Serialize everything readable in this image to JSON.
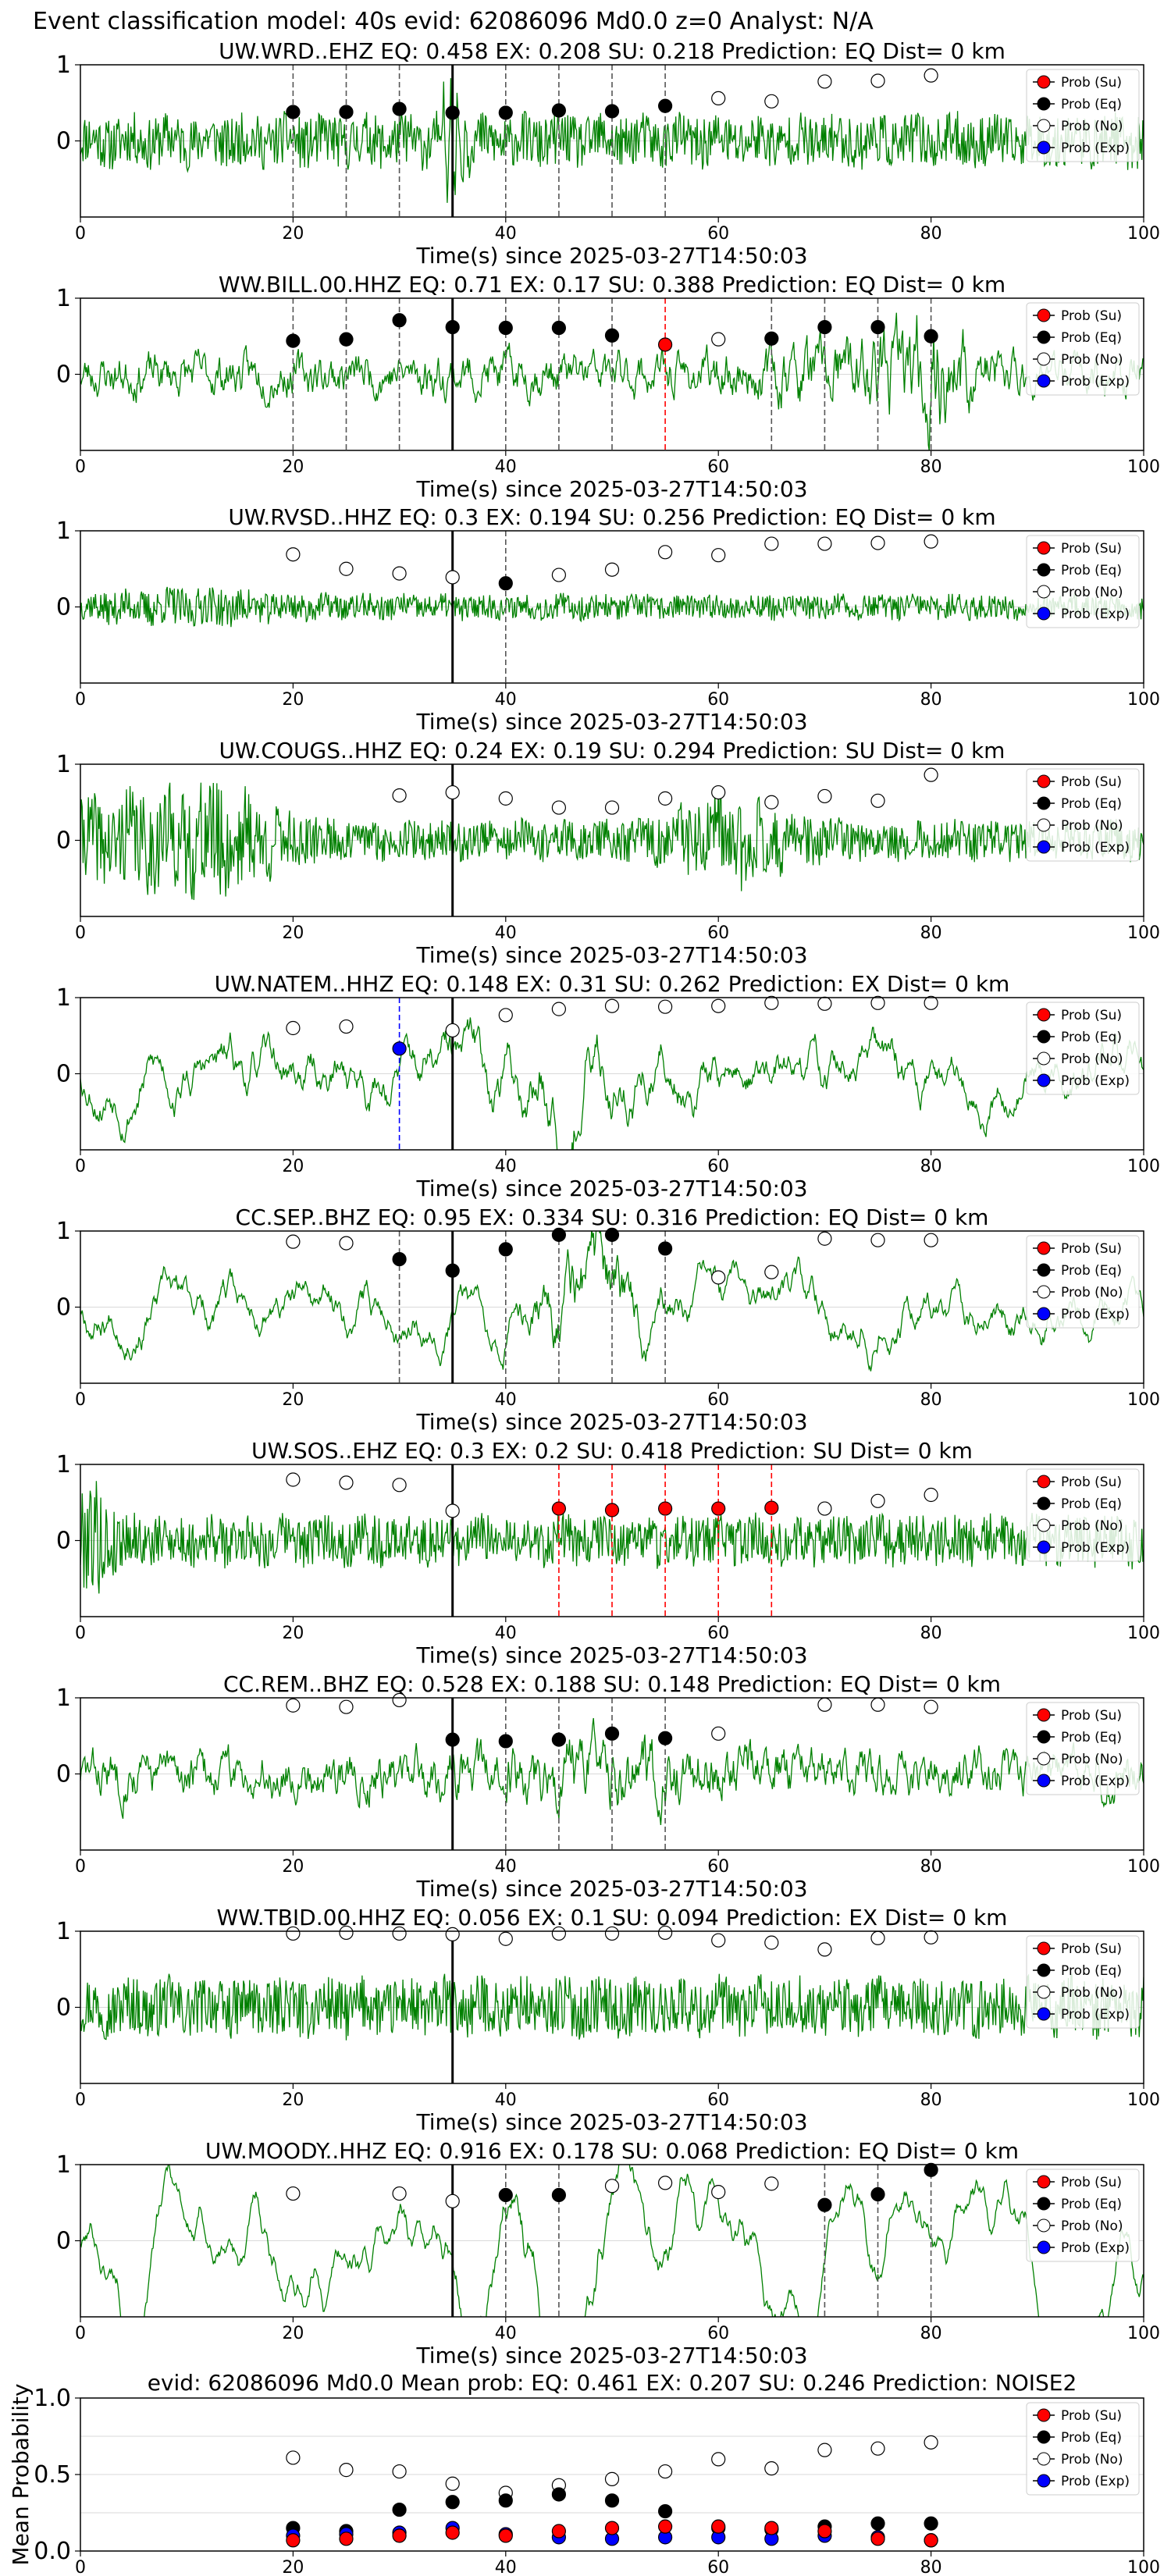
{
  "figure": {
    "title": "Event classification model: 40s evid: 62086096 Md0.0 z=0 Analyst: N/A"
  },
  "legend_labels": [
    "Prob (Su)",
    "Prob (Eq)",
    "Prob (No)",
    "Prob (Exp)"
  ],
  "colors": {
    "trace": "#008000",
    "su": "#ff0000",
    "eq": "#000000",
    "no": "#ffffff",
    "exp": "#0000ff",
    "grid": "#d9d9d9"
  },
  "chart_data": [
    {
      "type": "line",
      "title": "UW.WRD..EHZ   EQ: 0.458  EX: 0.208  SU: 0.218   Prediction: EQ    Dist= 0 km",
      "xlabel": "Time(s) since 2025-03-27T14:50:03",
      "xlim": [
        0,
        100
      ],
      "ylim": [
        -1,
        1
      ],
      "xticks": [
        0,
        20,
        40,
        60,
        80,
        100
      ],
      "yticks": [
        0,
        1
      ],
      "legend": "top-right",
      "trace": {
        "seed": 11,
        "amp": 0.38,
        "style": "noisy",
        "spikes": [
          [
            35,
            2.1,
            -0.7
          ]
        ]
      },
      "event_line": 35,
      "markers": [
        {
          "x": 20,
          "y": 0.38,
          "cls": "eq"
        },
        {
          "x": 25,
          "y": 0.38,
          "cls": "eq"
        },
        {
          "x": 30,
          "y": 0.42,
          "cls": "eq"
        },
        {
          "x": 35,
          "y": 0.37,
          "cls": "eq"
        },
        {
          "x": 40,
          "y": 0.37,
          "cls": "eq"
        },
        {
          "x": 45,
          "y": 0.4,
          "cls": "eq"
        },
        {
          "x": 50,
          "y": 0.39,
          "cls": "eq"
        },
        {
          "x": 55,
          "y": 0.46,
          "cls": "eq"
        },
        {
          "x": 60,
          "y": 0.56,
          "cls": "no"
        },
        {
          "x": 65,
          "y": 0.52,
          "cls": "no"
        },
        {
          "x": 70,
          "y": 0.78,
          "cls": "no"
        },
        {
          "x": 75,
          "y": 0.79,
          "cls": "no"
        },
        {
          "x": 80,
          "y": 0.86,
          "cls": "no"
        }
      ]
    },
    {
      "type": "line",
      "title": "WW.BILL.00.HHZ   EQ: 0.71  EX: 0.17  SU: 0.388   Prediction: EQ    Dist= 0 km",
      "xlabel": "Time(s) since 2025-03-27T14:50:03",
      "xlim": [
        0,
        100
      ],
      "ylim": [
        -1,
        1
      ],
      "xticks": [
        0,
        20,
        40,
        60,
        80,
        100
      ],
      "yticks": [
        0,
        1
      ],
      "legend": "top-right",
      "trace": {
        "seed": 23,
        "amp": 0.3,
        "style": "smooth",
        "bursts": [
          [
            80,
            3,
            2.6
          ],
          [
            70,
            4,
            1.6
          ]
        ]
      },
      "event_line": 35,
      "markers": [
        {
          "x": 20,
          "y": 0.44,
          "cls": "eq"
        },
        {
          "x": 25,
          "y": 0.46,
          "cls": "eq"
        },
        {
          "x": 30,
          "y": 0.71,
          "cls": "eq"
        },
        {
          "x": 35,
          "y": 0.62,
          "cls": "eq"
        },
        {
          "x": 40,
          "y": 0.61,
          "cls": "eq"
        },
        {
          "x": 45,
          "y": 0.61,
          "cls": "eq"
        },
        {
          "x": 50,
          "y": 0.51,
          "cls": "eq"
        },
        {
          "x": 55,
          "y": 0.39,
          "cls": "su"
        },
        {
          "x": 60,
          "y": 0.46,
          "cls": "no"
        },
        {
          "x": 65,
          "y": 0.47,
          "cls": "eq"
        },
        {
          "x": 70,
          "y": 0.62,
          "cls": "eq"
        },
        {
          "x": 75,
          "y": 0.62,
          "cls": "eq"
        },
        {
          "x": 80,
          "y": 0.5,
          "cls": "eq"
        }
      ]
    },
    {
      "type": "line",
      "title": "UW.RVSD..HHZ   EQ: 0.3  EX: 0.194  SU: 0.256   Prediction: EQ    Dist= 0 km",
      "xlabel": "Time(s) since 2025-03-27T14:50:03",
      "xlim": [
        0,
        100
      ],
      "ylim": [
        -1,
        1
      ],
      "xticks": [
        0,
        20,
        40,
        60,
        80,
        100
      ],
      "yticks": [
        0,
        1
      ],
      "legend": "top-right",
      "trace": {
        "seed": 37,
        "amp": 0.18,
        "style": "noisy",
        "bursts": [
          [
            10,
            6,
            1.6
          ]
        ]
      },
      "event_line": 35,
      "markers": [
        {
          "x": 20,
          "y": 0.69,
          "cls": "no"
        },
        {
          "x": 25,
          "y": 0.5,
          "cls": "no"
        },
        {
          "x": 30,
          "y": 0.44,
          "cls": "no"
        },
        {
          "x": 35,
          "y": 0.39,
          "cls": "no"
        },
        {
          "x": 40,
          "y": 0.31,
          "cls": "eq"
        },
        {
          "x": 45,
          "y": 0.42,
          "cls": "no"
        },
        {
          "x": 50,
          "y": 0.49,
          "cls": "no"
        },
        {
          "x": 55,
          "y": 0.72,
          "cls": "no"
        },
        {
          "x": 60,
          "y": 0.68,
          "cls": "no"
        },
        {
          "x": 65,
          "y": 0.83,
          "cls": "no"
        },
        {
          "x": 70,
          "y": 0.83,
          "cls": "no"
        },
        {
          "x": 75,
          "y": 0.84,
          "cls": "no"
        },
        {
          "x": 80,
          "y": 0.86,
          "cls": "no"
        }
      ]
    },
    {
      "type": "line",
      "title": "UW.COUGS..HHZ   EQ: 0.24  EX: 0.19  SU: 0.294   Prediction: SU    Dist= 0 km",
      "xlabel": "Time(s) since 2025-03-27T14:50:03",
      "xlim": [
        0,
        100
      ],
      "ylim": [
        -1,
        1
      ],
      "xticks": [
        0,
        20,
        40,
        60,
        80,
        100
      ],
      "yticks": [
        0,
        1
      ],
      "legend": "top-right",
      "trace": {
        "seed": 41,
        "amp": 0.28,
        "style": "noisy",
        "bursts": [
          [
            5,
            7,
            2.4
          ],
          [
            15,
            4,
            1.8
          ],
          [
            61,
            4,
            2.4
          ]
        ]
      },
      "event_line": 35,
      "markers": [
        {
          "x": 30,
          "y": 0.59,
          "cls": "no"
        },
        {
          "x": 35,
          "y": 0.63,
          "cls": "no"
        },
        {
          "x": 40,
          "y": 0.55,
          "cls": "no"
        },
        {
          "x": 45,
          "y": 0.43,
          "cls": "no"
        },
        {
          "x": 50,
          "y": 0.43,
          "cls": "no"
        },
        {
          "x": 55,
          "y": 0.55,
          "cls": "no"
        },
        {
          "x": 60,
          "y": 0.63,
          "cls": "no"
        },
        {
          "x": 65,
          "y": 0.5,
          "cls": "no"
        },
        {
          "x": 70,
          "y": 0.58,
          "cls": "no"
        },
        {
          "x": 75,
          "y": 0.52,
          "cls": "no"
        },
        {
          "x": 80,
          "y": 0.86,
          "cls": "no"
        }
      ]
    },
    {
      "type": "line",
      "title": "UW.NATEM..HHZ   EQ: 0.148  EX: 0.31  SU: 0.262   Prediction: EX    Dist= 0 km",
      "xlabel": "Time(s) since 2025-03-27T14:50:03",
      "xlim": [
        0,
        100
      ],
      "ylim": [
        -1,
        1
      ],
      "xticks": [
        0,
        20,
        40,
        60,
        80,
        100
      ],
      "yticks": [
        0,
        1
      ],
      "legend": "top-right",
      "trace": {
        "seed": 53,
        "amp": 0.32,
        "style": "wavy",
        "bursts": [
          [
            45,
            6,
            1.6
          ]
        ]
      },
      "event_line": 35,
      "markers": [
        {
          "x": 20,
          "y": 0.6,
          "cls": "no"
        },
        {
          "x": 25,
          "y": 0.62,
          "cls": "no"
        },
        {
          "x": 30,
          "y": 0.33,
          "cls": "exp"
        },
        {
          "x": 35,
          "y": 0.57,
          "cls": "no"
        },
        {
          "x": 40,
          "y": 0.77,
          "cls": "no"
        },
        {
          "x": 45,
          "y": 0.85,
          "cls": "no"
        },
        {
          "x": 50,
          "y": 0.89,
          "cls": "no"
        },
        {
          "x": 55,
          "y": 0.88,
          "cls": "no"
        },
        {
          "x": 60,
          "y": 0.89,
          "cls": "no"
        },
        {
          "x": 65,
          "y": 0.93,
          "cls": "no"
        },
        {
          "x": 70,
          "y": 0.92,
          "cls": "no"
        },
        {
          "x": 75,
          "y": 0.93,
          "cls": "no"
        },
        {
          "x": 80,
          "y": 0.93,
          "cls": "no"
        }
      ]
    },
    {
      "type": "line",
      "title": "CC.SEP..BHZ   EQ: 0.95  EX: 0.334  SU: 0.316   Prediction: EQ    Dist= 0 km",
      "xlabel": "Time(s) since 2025-03-27T14:50:03",
      "xlim": [
        0,
        100
      ],
      "ylim": [
        -1,
        1
      ],
      "xticks": [
        0,
        20,
        40,
        60,
        80,
        100
      ],
      "yticks": [
        0,
        1
      ],
      "legend": "top-right",
      "trace": {
        "seed": 67,
        "amp": 0.26,
        "style": "wavy",
        "bursts": [
          [
            48,
            3,
            2.8
          ]
        ]
      },
      "event_line": 35,
      "markers": [
        {
          "x": 20,
          "y": 0.86,
          "cls": "no"
        },
        {
          "x": 25,
          "y": 0.84,
          "cls": "no"
        },
        {
          "x": 30,
          "y": 0.63,
          "cls": "eq"
        },
        {
          "x": 35,
          "y": 0.48,
          "cls": "eq"
        },
        {
          "x": 40,
          "y": 0.76,
          "cls": "eq"
        },
        {
          "x": 45,
          "y": 0.95,
          "cls": "eq"
        },
        {
          "x": 50,
          "y": 0.95,
          "cls": "eq"
        },
        {
          "x": 55,
          "y": 0.77,
          "cls": "eq"
        },
        {
          "x": 60,
          "y": 0.39,
          "cls": "no"
        },
        {
          "x": 65,
          "y": 0.46,
          "cls": "no"
        },
        {
          "x": 70,
          "y": 0.9,
          "cls": "no"
        },
        {
          "x": 75,
          "y": 0.88,
          "cls": "no"
        },
        {
          "x": 80,
          "y": 0.88,
          "cls": "no"
        }
      ]
    },
    {
      "type": "line",
      "title": "UW.SOS..EHZ   EQ: 0.3  EX: 0.2  SU: 0.418   Prediction: SU    Dist= 0 km",
      "xlabel": "Time(s) since 2025-03-27T14:50:03",
      "xlim": [
        0,
        100
      ],
      "ylim": [
        -1,
        1
      ],
      "xticks": [
        0,
        20,
        40,
        60,
        80,
        100
      ],
      "yticks": [
        0,
        1
      ],
      "legend": "top-right",
      "trace": {
        "seed": 79,
        "amp": 0.36,
        "style": "noisy",
        "bursts": [
          [
            1,
            1.5,
            2.4
          ]
        ]
      },
      "event_line": 35,
      "markers": [
        {
          "x": 20,
          "y": 0.8,
          "cls": "no"
        },
        {
          "x": 25,
          "y": 0.76,
          "cls": "no"
        },
        {
          "x": 30,
          "y": 0.73,
          "cls": "no"
        },
        {
          "x": 35,
          "y": 0.39,
          "cls": "no"
        },
        {
          "x": 45,
          "y": 0.42,
          "cls": "su"
        },
        {
          "x": 50,
          "y": 0.4,
          "cls": "su"
        },
        {
          "x": 55,
          "y": 0.42,
          "cls": "su"
        },
        {
          "x": 60,
          "y": 0.42,
          "cls": "su"
        },
        {
          "x": 65,
          "y": 0.43,
          "cls": "su"
        },
        {
          "x": 70,
          "y": 0.42,
          "cls": "no"
        },
        {
          "x": 75,
          "y": 0.52,
          "cls": "no"
        },
        {
          "x": 80,
          "y": 0.6,
          "cls": "no"
        }
      ]
    },
    {
      "type": "line",
      "title": "CC.REM..BHZ   EQ: 0.528  EX: 0.188  SU: 0.148   Prediction: EQ    Dist= 0 km",
      "xlabel": "Time(s) since 2025-03-27T14:50:03",
      "xlim": [
        0,
        100
      ],
      "ylim": [
        -1,
        1
      ],
      "xticks": [
        0,
        20,
        40,
        60,
        80,
        100
      ],
      "yticks": [
        0,
        1
      ],
      "legend": "top-right",
      "trace": {
        "seed": 83,
        "amp": 0.32,
        "style": "smooth",
        "bursts": [
          [
            50,
            8,
            1.5
          ]
        ]
      },
      "event_line": 35,
      "markers": [
        {
          "x": 20,
          "y": 0.9,
          "cls": "no"
        },
        {
          "x": 25,
          "y": 0.88,
          "cls": "no"
        },
        {
          "x": 30,
          "y": 0.97,
          "cls": "no"
        },
        {
          "x": 35,
          "y": 0.45,
          "cls": "eq"
        },
        {
          "x": 40,
          "y": 0.43,
          "cls": "eq"
        },
        {
          "x": 45,
          "y": 0.45,
          "cls": "eq"
        },
        {
          "x": 50,
          "y": 0.53,
          "cls": "eq"
        },
        {
          "x": 55,
          "y": 0.47,
          "cls": "eq"
        },
        {
          "x": 60,
          "y": 0.53,
          "cls": "no"
        },
        {
          "x": 70,
          "y": 0.91,
          "cls": "no"
        },
        {
          "x": 75,
          "y": 0.91,
          "cls": "no"
        },
        {
          "x": 80,
          "y": 0.88,
          "cls": "no"
        }
      ]
    },
    {
      "type": "line",
      "title": "WW.TBID.00.HHZ   EQ: 0.056  EX: 0.1  SU: 0.094   Prediction: EX    Dist= 0 km",
      "xlabel": "Time(s) since 2025-03-27T14:50:03",
      "xlim": [
        0,
        100
      ],
      "ylim": [
        -1,
        1
      ],
      "xticks": [
        0,
        20,
        40,
        60,
        80,
        100
      ],
      "yticks": [
        0,
        1
      ],
      "legend": "top-right",
      "trace": {
        "seed": 97,
        "amp": 0.42,
        "style": "noisy",
        "bursts": []
      },
      "event_line": 35,
      "markers": [
        {
          "x": 20,
          "y": 0.97,
          "cls": "no"
        },
        {
          "x": 25,
          "y": 0.98,
          "cls": "no"
        },
        {
          "x": 30,
          "y": 0.97,
          "cls": "no"
        },
        {
          "x": 35,
          "y": 0.96,
          "cls": "no"
        },
        {
          "x": 40,
          "y": 0.9,
          "cls": "no"
        },
        {
          "x": 45,
          "y": 0.97,
          "cls": "no"
        },
        {
          "x": 50,
          "y": 0.97,
          "cls": "no"
        },
        {
          "x": 55,
          "y": 0.98,
          "cls": "no"
        },
        {
          "x": 60,
          "y": 0.88,
          "cls": "no"
        },
        {
          "x": 65,
          "y": 0.85,
          "cls": "no"
        },
        {
          "x": 70,
          "y": 0.76,
          "cls": "no"
        },
        {
          "x": 75,
          "y": 0.91,
          "cls": "no"
        },
        {
          "x": 80,
          "y": 0.92,
          "cls": "no"
        }
      ]
    },
    {
      "type": "line",
      "title": "UW.MOODY..HHZ   EQ: 0.916  EX: 0.178  SU: 0.068   Prediction: EQ    Dist= 0 km",
      "xlabel": "Time(s) since 2025-03-27T14:50:03",
      "xlim": [
        0,
        100
      ],
      "ylim": [
        -1,
        1
      ],
      "xticks": [
        0,
        20,
        40,
        60,
        80,
        100
      ],
      "yticks": [
        0,
        1
      ],
      "legend": "top-right",
      "trace": {
        "seed": 101,
        "amp": 0.5,
        "style": "verywavy",
        "bursts": [
          [
            45,
            6,
            1.4
          ]
        ]
      },
      "event_line": 35,
      "markers": [
        {
          "x": 20,
          "y": 0.62,
          "cls": "no"
        },
        {
          "x": 30,
          "y": 0.62,
          "cls": "no"
        },
        {
          "x": 35,
          "y": 0.52,
          "cls": "no"
        },
        {
          "x": 40,
          "y": 0.6,
          "cls": "eq"
        },
        {
          "x": 45,
          "y": 0.6,
          "cls": "eq"
        },
        {
          "x": 50,
          "y": 0.72,
          "cls": "no"
        },
        {
          "x": 55,
          "y": 0.76,
          "cls": "no"
        },
        {
          "x": 60,
          "y": 0.64,
          "cls": "no"
        },
        {
          "x": 65,
          "y": 0.75,
          "cls": "no"
        },
        {
          "x": 70,
          "y": 0.47,
          "cls": "eq"
        },
        {
          "x": 75,
          "y": 0.61,
          "cls": "eq"
        },
        {
          "x": 80,
          "y": 0.93,
          "cls": "eq"
        }
      ]
    },
    {
      "type": "scatter",
      "title": "evid: 62086096  Md0.0   Mean prob:   EQ: 0.461  EX: 0.207  SU: 0.246   Prediction: NOISE2",
      "xlabel": "",
      "ylabel": "Mean Probability",
      "xlim": [
        0,
        100
      ],
      "ylim": [
        0,
        1
      ],
      "xticks": [
        0,
        20,
        40,
        60,
        80,
        100
      ],
      "yticks": [
        0,
        0.5,
        1
      ],
      "ytick_labels": [
        "0.0",
        "0.5",
        "1.0"
      ],
      "legend": "top-right",
      "x": [
        20,
        25,
        30,
        35,
        40,
        45,
        50,
        55,
        60,
        65,
        70,
        75,
        80
      ],
      "series": [
        {
          "name": "Prob (No)",
          "cls": "no",
          "values": [
            0.61,
            0.53,
            0.52,
            0.44,
            0.38,
            0.43,
            0.47,
            0.52,
            0.6,
            0.54,
            0.66,
            0.67,
            0.71
          ]
        },
        {
          "name": "Prob (Eq)",
          "cls": "eq",
          "values": [
            0.15,
            0.13,
            0.27,
            0.32,
            0.33,
            0.37,
            0.33,
            0.26,
            0.15,
            0.14,
            0.16,
            0.18,
            0.18
          ]
        },
        {
          "name": "Prob (Exp)",
          "cls": "exp",
          "values": [
            0.1,
            0.11,
            0.12,
            0.15,
            0.11,
            0.09,
            0.08,
            0.09,
            0.09,
            0.08,
            0.1,
            0.09,
            0.07
          ]
        },
        {
          "name": "Prob (Su)",
          "cls": "su",
          "values": [
            0.07,
            0.08,
            0.1,
            0.12,
            0.1,
            0.13,
            0.15,
            0.16,
            0.16,
            0.15,
            0.13,
            0.08,
            0.07
          ]
        }
      ]
    }
  ]
}
